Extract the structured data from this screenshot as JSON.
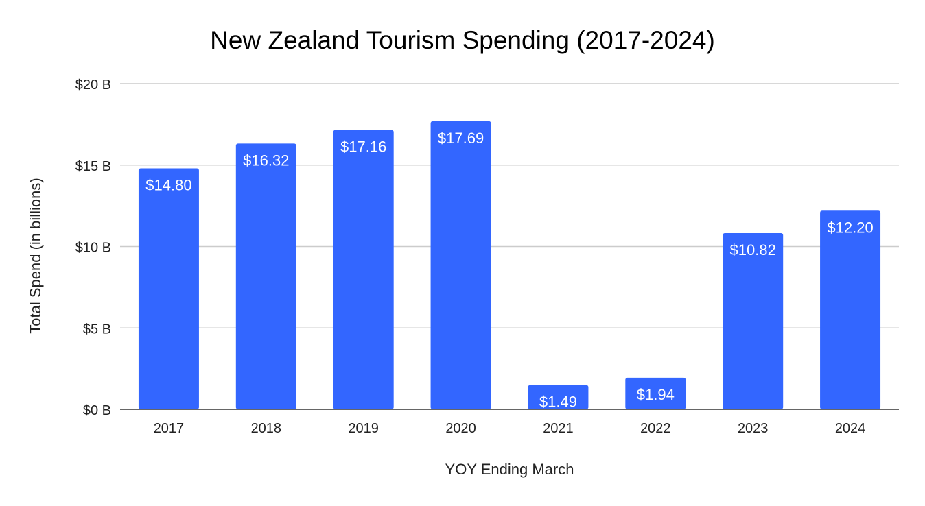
{
  "chart_data": {
    "type": "bar",
    "title": "New Zealand Tourism Spending (2017-2024)",
    "xlabel": "YOY Ending March",
    "ylabel": "Total Spend (in billions)",
    "categories": [
      "2017",
      "2018",
      "2019",
      "2020",
      "2021",
      "2022",
      "2023",
      "2024"
    ],
    "values": [
      14.8,
      16.32,
      17.16,
      17.69,
      1.49,
      1.94,
      10.82,
      12.2
    ],
    "data_labels": [
      "$14.80",
      "$16.32",
      "$17.16",
      "$17.69",
      "$1.49",
      "$1.94",
      "$10.82",
      "$12.20"
    ],
    "y_ticks": [
      0,
      5,
      10,
      15,
      20
    ],
    "y_tick_labels": [
      "$0 B",
      "$5 B",
      "$10 B",
      "$15 B",
      "$20 B"
    ],
    "ylim": [
      0,
      20
    ],
    "grid": true,
    "legend": "none",
    "colors": {
      "bar": "#3366ff",
      "grid": "#cccccc",
      "axis": "#333333",
      "data_label": "#ffffff",
      "text": "#222222"
    }
  }
}
